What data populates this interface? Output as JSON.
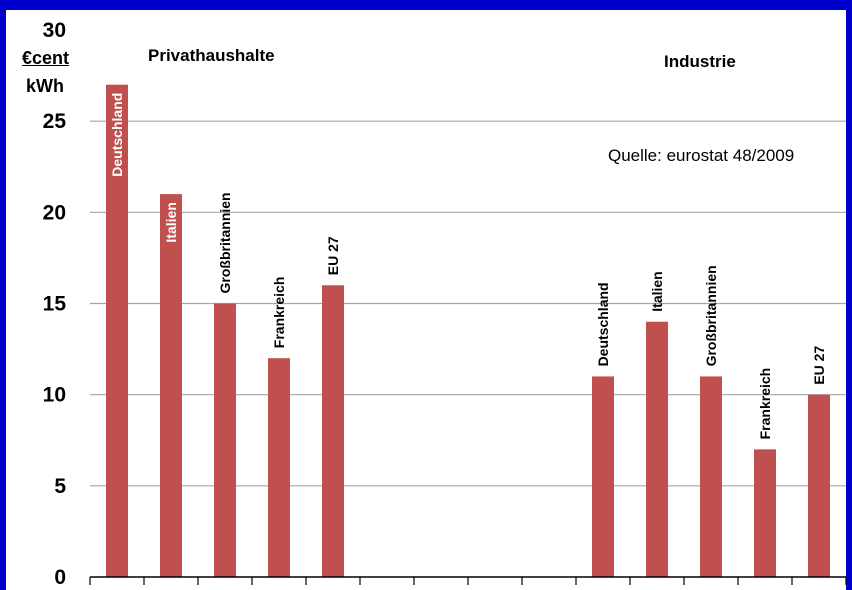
{
  "colors": {
    "frame": "#0000cc",
    "bar": "#c0504d",
    "grid": "#a6a6a6",
    "axis": "#000000"
  },
  "unit": {
    "numerator": "€cent",
    "denominator": "kWh"
  },
  "groups": [
    "Privathaushalte",
    "Industrie"
  ],
  "source": "Quelle: eurostat 48/2009",
  "chart_data": {
    "type": "bar",
    "ylim": [
      0,
      30
    ],
    "yticks": [
      0,
      5,
      10,
      15,
      20,
      25,
      30
    ],
    "grid": true,
    "legend": "none",
    "categories": [
      "Deutschland",
      "Italien",
      "Großbritannien",
      "Frankreich",
      "EU 27",
      "",
      "",
      "",
      "",
      "Deutschland",
      "Italien",
      "Großbritannien",
      "Frankreich",
      "EU 27"
    ],
    "values": [
      27,
      21,
      15,
      12,
      16,
      null,
      null,
      null,
      null,
      11,
      14,
      11,
      7,
      10
    ],
    "label_inside": [
      true,
      true,
      false,
      false,
      false,
      false,
      false,
      false,
      false,
      false,
      false,
      false,
      false,
      false
    ]
  }
}
